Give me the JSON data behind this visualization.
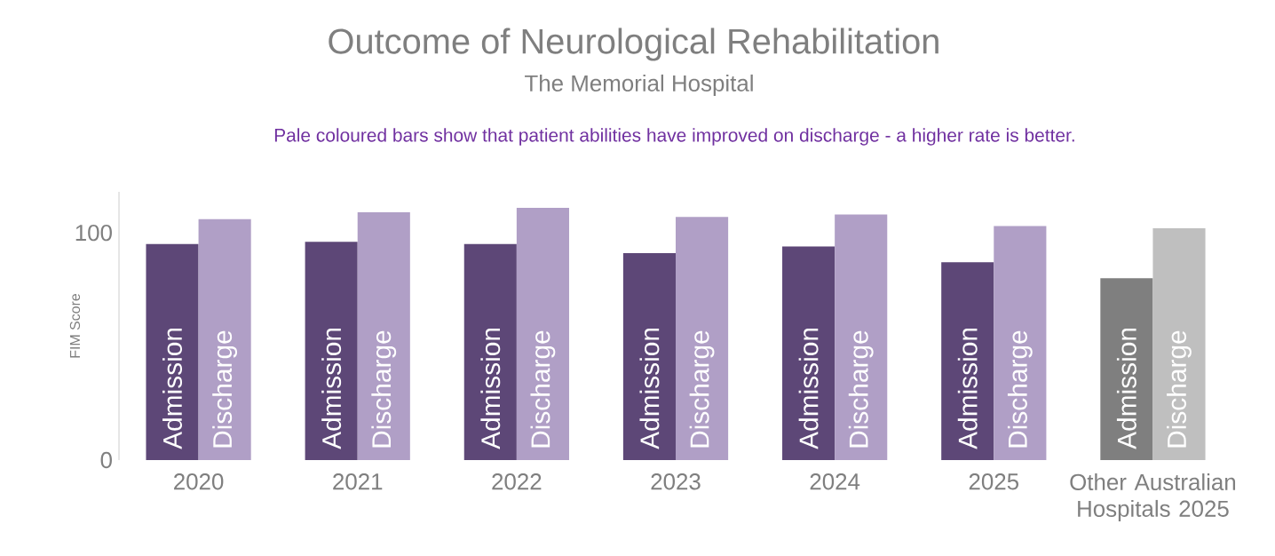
{
  "chart_data": {
    "type": "bar",
    "title": "Outcome of Neurological Rehabilitation",
    "subtitle": "The Memorial Hospital",
    "annotations": [
      "Pale coloured bars show that patient abilities have improved on discharge - a higher rate is better."
    ],
    "ylabel": "FIM Score",
    "categories": [
      "2020",
      "2021",
      "2022",
      "2023",
      "2024",
      "2025",
      "Other Australian Hospitals 2025"
    ],
    "series": [
      {
        "name": "Admission",
        "colors": [
          "#5d4777",
          "#5d4777",
          "#5d4777",
          "#5d4777",
          "#5d4777",
          "#5d4777",
          "#7f7f7f"
        ],
        "values": [
          95,
          96,
          95,
          91,
          94,
          87,
          80
        ]
      },
      {
        "name": "Discharge",
        "colors": [
          "#b09fc6",
          "#b09fc6",
          "#b09fc6",
          "#b09fc6",
          "#b09fc6",
          "#b09fc6",
          "#bfbfbf"
        ],
        "values": [
          106,
          109,
          111,
          107,
          108,
          103,
          102
        ]
      }
    ],
    "ylim": [
      0,
      118
    ],
    "yticks": [
      0,
      100
    ]
  }
}
